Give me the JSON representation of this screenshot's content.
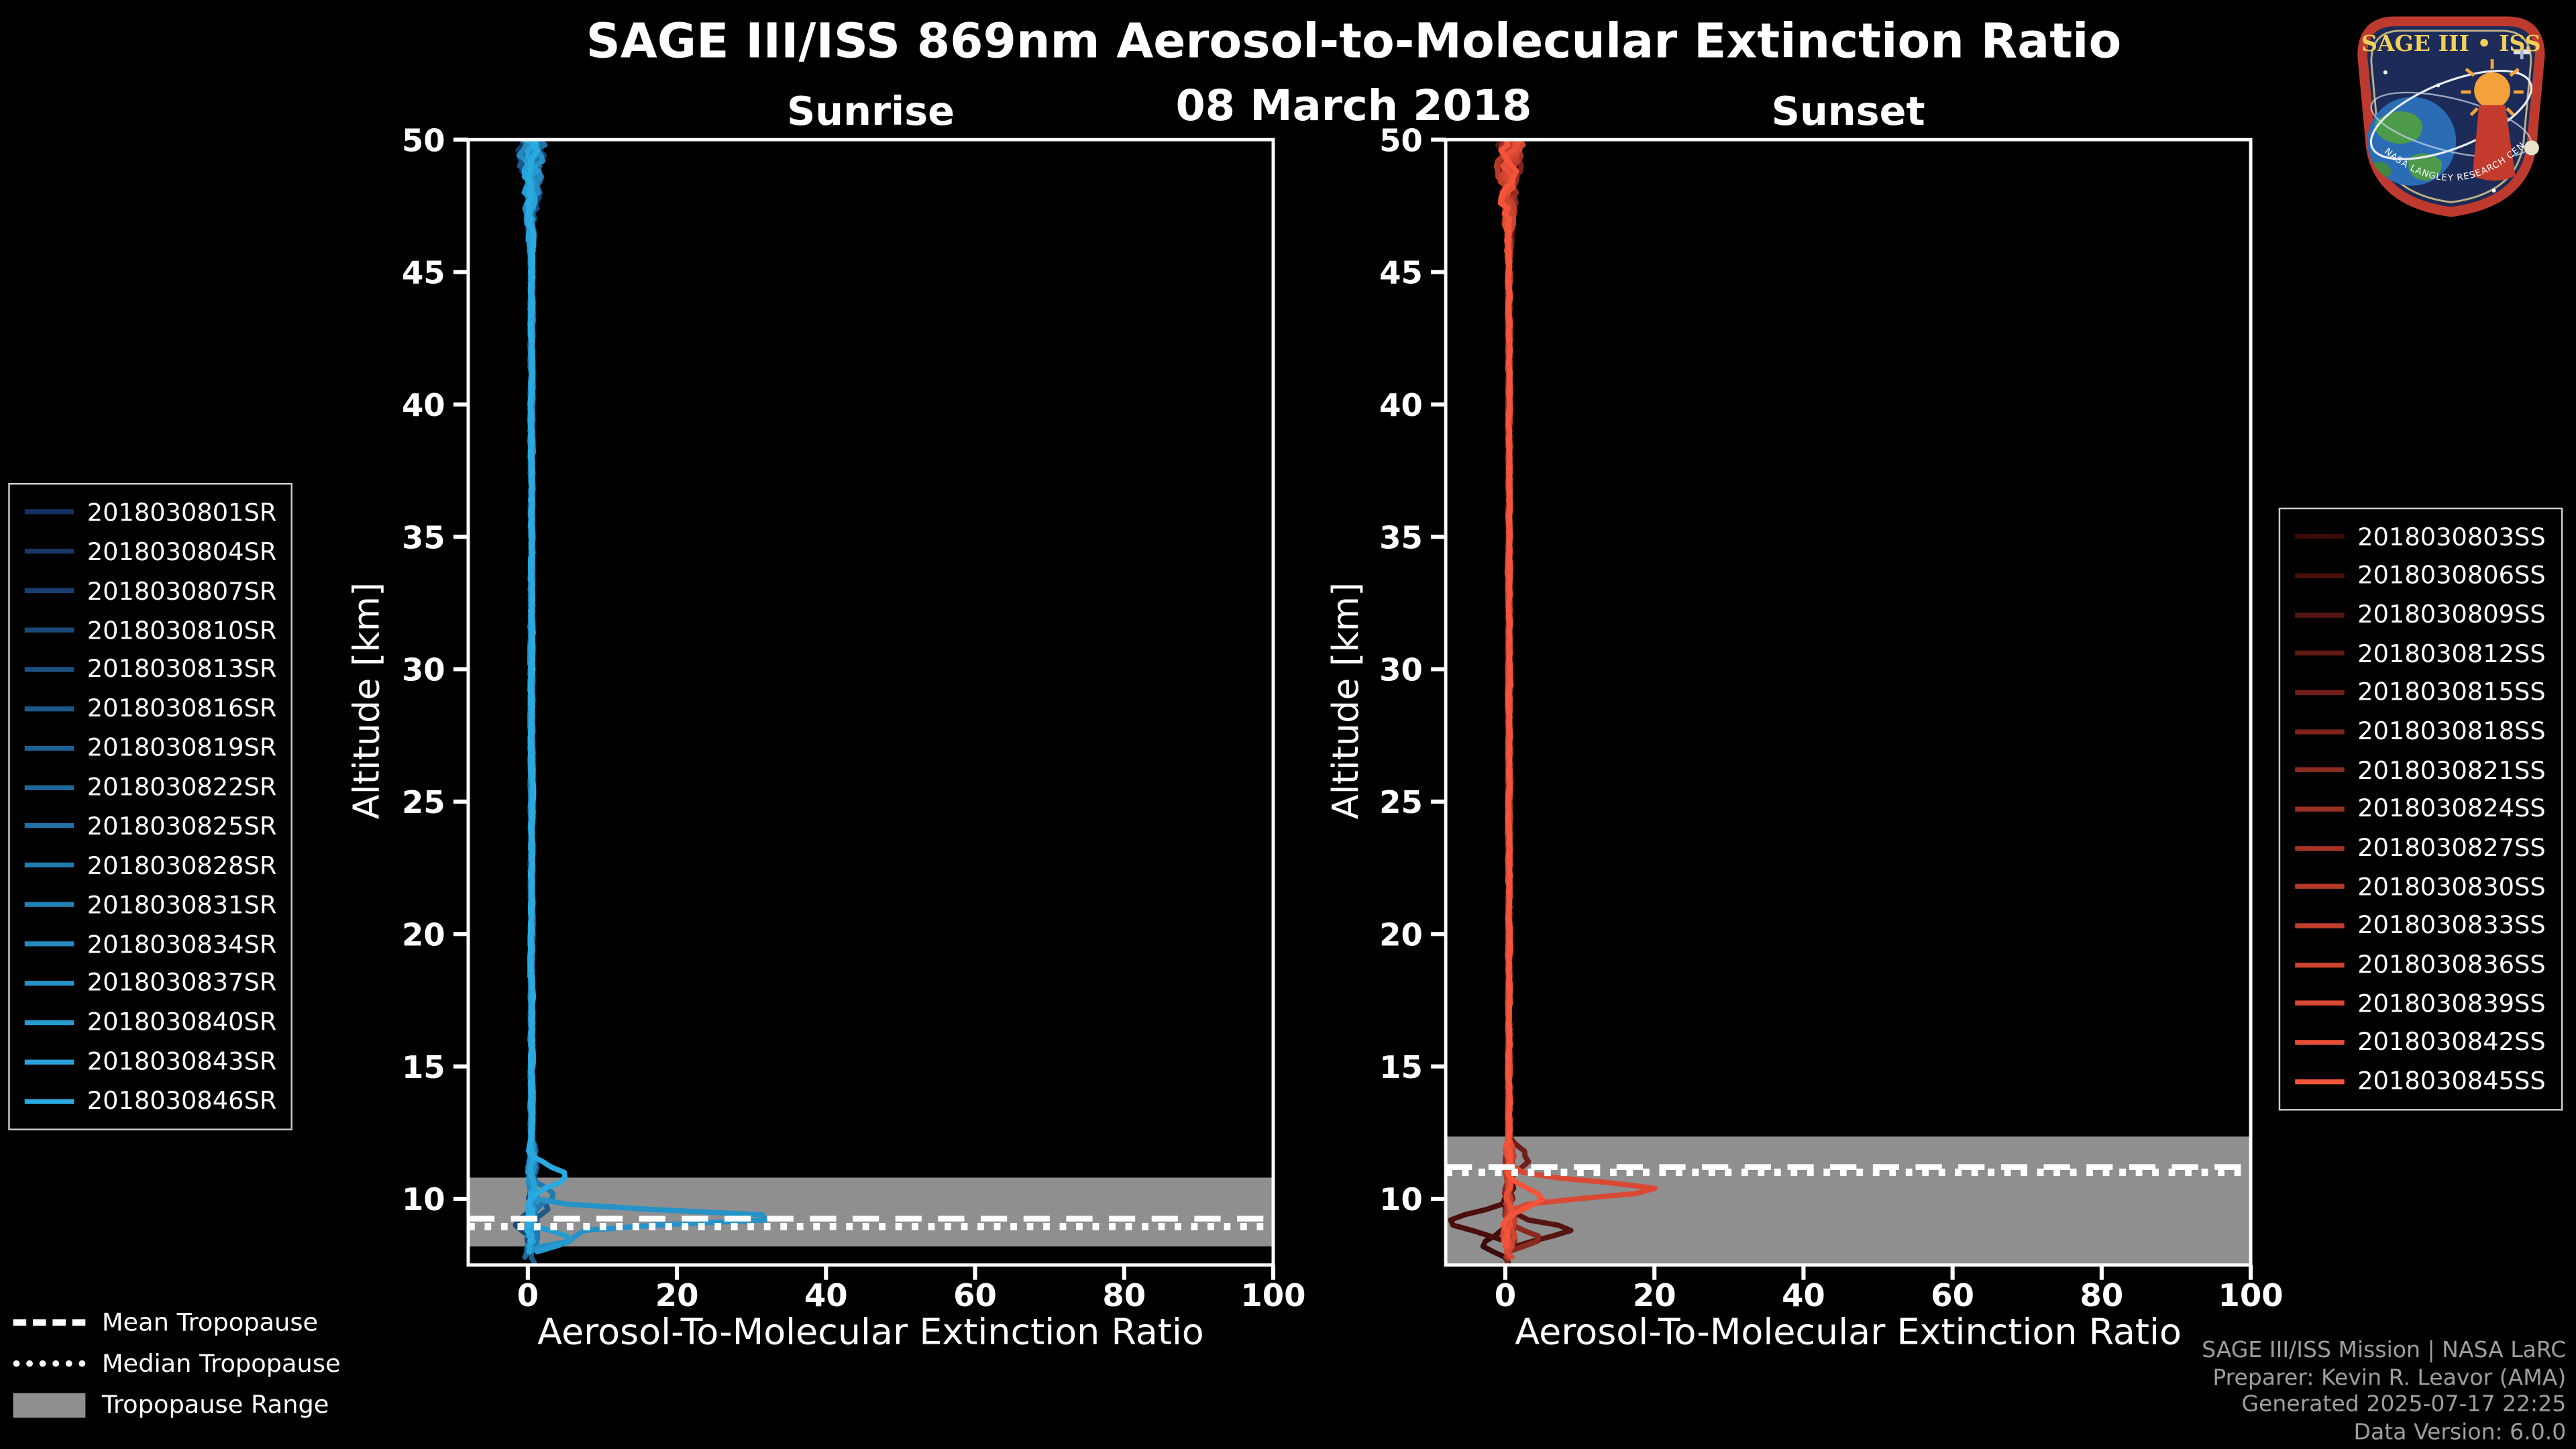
{
  "header": {
    "title": "SAGE III/ISS 869nm Aerosol-to-Molecular Extinction Ratio",
    "date": "08 March 2018"
  },
  "logo": {
    "text": "SAGE III • ISS",
    "ring_text": "NASA LANGLEY RESEARCH CENTER"
  },
  "tropopause_legend": {
    "items": [
      {
        "style": "dashed",
        "label": "Mean Tropopause"
      },
      {
        "style": "dotted",
        "label": "Median Tropopause"
      },
      {
        "style": "patch",
        "label": "Tropopause Range"
      }
    ]
  },
  "credits": {
    "lines": [
      "SAGE III/ISS Mission | NASA LaRC",
      "Preparer: Kevin R. Leavor (AMA)",
      "Generated 2025-07-17 22:25",
      "Data Version: 6.0.0"
    ]
  },
  "chart_data": [
    {
      "type": "line",
      "panel": "sunrise",
      "title": "Sunrise",
      "xlabel": "Aerosol-To-Molecular Extinction Ratio",
      "ylabel": "Altitude [km]",
      "xlim": [
        -8,
        100
      ],
      "ylim": [
        7.5,
        50
      ],
      "xticks": [
        0,
        20,
        40,
        60,
        80,
        100
      ],
      "yticks": [
        10,
        15,
        20,
        25,
        30,
        35,
        40,
        45,
        50
      ],
      "grid": false,
      "legend_position": "outside-left",
      "tropopause": {
        "mean_km": 9.25,
        "median_km": 8.95,
        "range_km": [
          8.2,
          10.8
        ],
        "band_color": "#8f8f8f"
      },
      "profile": {
        "background_x": 0.5,
        "upper_noise": {
          "start_km": 45,
          "amp": 2.6
        },
        "mid_noise_amp": 0.3,
        "lower_noise": {
          "start_km": 12,
          "amp": 0.85
        },
        "spikes": [
          {
            "series": 12,
            "alt_km": 9.3,
            "peak_x": 34,
            "width_km": 0.35
          },
          {
            "series": 12,
            "alt_km": 8.55,
            "peak_x": 6,
            "width_km": 0.3
          },
          {
            "series": 15,
            "alt_km": 10.85,
            "peak_x": 4.5,
            "width_km": 0.5
          },
          {
            "series": 13,
            "alt_km": 8.5,
            "peak_x": 5,
            "width_km": 0.35
          },
          {
            "series": 9,
            "alt_km": 10.15,
            "peak_x": 2.5,
            "width_km": 0.45
          },
          {
            "series": 5,
            "alt_km": 9.6,
            "peak_x": 2.2,
            "width_km": 0.4
          },
          {
            "series": 3,
            "alt_km": 8.95,
            "peak_x": -2.5,
            "width_km": 0.35
          }
        ]
      },
      "series": [
        {
          "name": "2018030801SR",
          "color": "#15305E"
        },
        {
          "name": "2018030804SR",
          "color": "#163867"
        },
        {
          "name": "2018030807SR",
          "color": "#184070"
        },
        {
          "name": "2018030810SR",
          "color": "#194978"
        },
        {
          "name": "2018030813SR",
          "color": "#1A5181"
        },
        {
          "name": "2018030816SR",
          "color": "#1C598A"
        },
        {
          "name": "2018030819SR",
          "color": "#1D6193"
        },
        {
          "name": "2018030822SR",
          "color": "#1E699C"
        },
        {
          "name": "2018030825SR",
          "color": "#2072A4"
        },
        {
          "name": "2018030828SR",
          "color": "#217AAD"
        },
        {
          "name": "2018030831SR",
          "color": "#2282B6"
        },
        {
          "name": "2018030834SR",
          "color": "#248ABF"
        },
        {
          "name": "2018030837SR",
          "color": "#2592C8"
        },
        {
          "name": "2018030840SR",
          "color": "#269BD0"
        },
        {
          "name": "2018030843SR",
          "color": "#28A3D9"
        },
        {
          "name": "2018030846SR",
          "color": "#29ABE2"
        }
      ]
    },
    {
      "type": "line",
      "panel": "sunset",
      "title": "Sunset",
      "xlabel": "Aerosol-To-Molecular Extinction Ratio",
      "ylabel": "Altitude [km]",
      "xlim": [
        -8,
        100
      ],
      "ylim": [
        7.5,
        50
      ],
      "xticks": [
        0,
        20,
        40,
        60,
        80,
        100
      ],
      "yticks": [
        10,
        15,
        20,
        25,
        30,
        35,
        40,
        45,
        50
      ],
      "grid": false,
      "legend_position": "outside-right",
      "tropopause": {
        "mean_km": 11.2,
        "median_km": 11.0,
        "range_km": [
          7.5,
          12.35
        ],
        "band_color": "#8f8f8f"
      },
      "profile": {
        "background_x": 0.5,
        "upper_noise": {
          "start_km": 45,
          "amp": 2.6
        },
        "mid_noise_amp": 0.3,
        "lower_noise": {
          "start_km": 12,
          "amp": 0.85
        },
        "spikes": [
          {
            "series": 12,
            "alt_km": 10.35,
            "peak_x": 20,
            "width_km": 0.4
          },
          {
            "series": 1,
            "alt_km": 9.15,
            "peak_x": -8,
            "width_km": 0.45
          },
          {
            "series": 2,
            "alt_km": 8.8,
            "peak_x": 8,
            "width_km": 0.4
          },
          {
            "series": 14,
            "alt_km": 10.0,
            "peak_x": 4,
            "width_km": 0.5
          },
          {
            "series": 6,
            "alt_km": 8.5,
            "peak_x": 5,
            "width_km": 0.35
          },
          {
            "series": 4,
            "alt_km": 11.5,
            "peak_x": 2.5,
            "width_km": 0.5
          },
          {
            "series": 0,
            "alt_km": 8.3,
            "peak_x": -3,
            "width_km": 0.4
          }
        ]
      },
      "series": [
        {
          "name": "2018030803SS",
          "color": "#3D0A0A"
        },
        {
          "name": "2018030806SS",
          "color": "#4A0F0D"
        },
        {
          "name": "2018030809SS",
          "color": "#571511"
        },
        {
          "name": "2018030812SS",
          "color": "#641A14"
        },
        {
          "name": "2018030815SS",
          "color": "#711F18"
        },
        {
          "name": "2018030818SS",
          "color": "#7E241B"
        },
        {
          "name": "2018030821SS",
          "color": "#8B2A1F"
        },
        {
          "name": "2018030824SS",
          "color": "#982F22"
        },
        {
          "name": "2018030827SS",
          "color": "#A63425"
        },
        {
          "name": "2018030830SS",
          "color": "#B33A29"
        },
        {
          "name": "2018030833SS",
          "color": "#C03F2C"
        },
        {
          "name": "2018030836SS",
          "color": "#CD4430"
        },
        {
          "name": "2018030839SS",
          "color": "#DA4933"
        },
        {
          "name": "2018030842SS",
          "color": "#E74F37"
        },
        {
          "name": "2018030845SS",
          "color": "#F4543A"
        }
      ]
    }
  ]
}
